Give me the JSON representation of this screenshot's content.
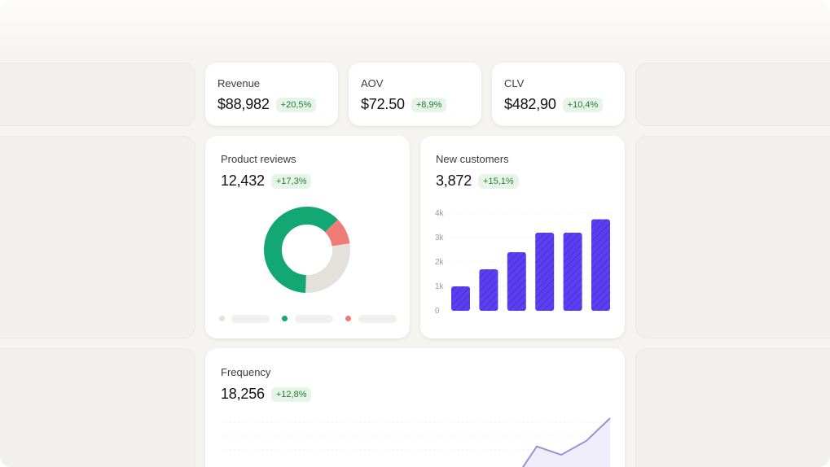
{
  "kpis": [
    {
      "label": "Revenue",
      "value": "$88,982",
      "change": "+20,5%"
    },
    {
      "label": "AOV",
      "value": "$72.50",
      "change": "+8,9%"
    },
    {
      "label": "CLV",
      "value": "$482,90",
      "change": "+10,4%"
    }
  ],
  "reviews": {
    "label": "Product reviews",
    "value": "12,432",
    "change": "+17,3%"
  },
  "customers": {
    "label": "New customers",
    "value": "3,872",
    "change": "+15,1%"
  },
  "frequency": {
    "label": "Frequency",
    "value": "18,256",
    "change": "+12,8%"
  },
  "colors": {
    "accent_purple": "#5b3ff0",
    "green": "#13a774",
    "gray": "#e4e1dc",
    "red": "#ee7b76",
    "badge_bg": "#e7f5e9",
    "badge_text": "#237a35"
  },
  "chart_data": [
    {
      "type": "pie",
      "title": "",
      "labels": [
        "",
        "",
        ""
      ],
      "values": [
        62,
        10,
        28
      ],
      "colors": [
        "#13a774",
        "#ee7b76",
        "#e4e1dc"
      ]
    },
    {
      "type": "bar",
      "title": "",
      "categories": [
        "",
        "",
        "",
        "",
        "",
        ""
      ],
      "values": [
        1000,
        1700,
        2400,
        3200,
        3200,
        3750
      ],
      "ylim": [
        0,
        4000
      ],
      "y_ticks": [
        "0",
        "1k",
        "2k",
        "3k",
        "4k"
      ],
      "grid": true,
      "color": "#5b3ff0"
    },
    {
      "type": "area",
      "title": "",
      "x": [
        0,
        1,
        2,
        3,
        4,
        5,
        6
      ],
      "values": [
        0.5,
        1.0,
        0.7,
        2.0,
        1.7,
        2.2,
        3.0
      ],
      "grid": true,
      "color": "#9a8fd8"
    }
  ]
}
